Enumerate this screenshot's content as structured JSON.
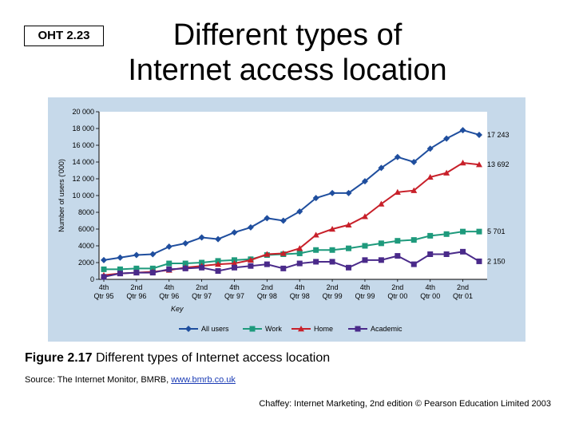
{
  "oht_label": "OHT 2.23",
  "title_line1": "Different types of",
  "title_line2": "Internet access location",
  "caption": {
    "fig_label": "Figure 2.17",
    "fig_text": "Different types of Internet access location"
  },
  "source": {
    "prefix": "Source: The Internet Monitor, BMRB, ",
    "link": "www.bmrb.co.uk"
  },
  "footer": "Chaffey: Internet Marketing, 2nd edition © Pearson Education Limited 2003",
  "chart_data": {
    "type": "line",
    "ylabel": "Number of users ('000)",
    "ylim": [
      0,
      20000
    ],
    "yticks": [
      "0",
      "2000",
      "4000",
      "6000",
      "8000",
      "10 000",
      "12 000",
      "14 000",
      "16 000",
      "18 000",
      "20 000"
    ],
    "xtick_labels": [
      [
        "4th",
        "Qtr 95"
      ],
      [
        "2nd",
        "Qtr 96"
      ],
      [
        "4th",
        "Qtr 96"
      ],
      [
        "2nd",
        "Qtr 97"
      ],
      [
        "4th",
        "Qtr 97"
      ],
      [
        "2nd",
        "Qtr 98"
      ],
      [
        "4th",
        "Qtr 98"
      ],
      [
        "2nd",
        "Qtr 99"
      ],
      [
        "4th",
        "Qtr 99"
      ],
      [
        "2nd",
        "Qtr 00"
      ],
      [
        "4th",
        "Qtr 00"
      ],
      [
        "2nd",
        "Qtr 01"
      ]
    ],
    "key_title": "Key",
    "grid": false,
    "series": [
      {
        "name": "All users",
        "color": "#1f4e9e",
        "marker": "diamond",
        "end_label": "17 243",
        "values": [
          2300,
          2600,
          2900,
          3000,
          3900,
          4300,
          5000,
          4800,
          5600,
          6200,
          7300,
          7000,
          8100,
          9700,
          10300,
          10300,
          11700,
          13300,
          14600,
          14000,
          15600,
          16800,
          17800,
          17243
        ]
      },
      {
        "name": "Work",
        "color": "#1e9a7c",
        "marker": "square",
        "end_label": "5 701",
        "values": [
          1200,
          1200,
          1300,
          1300,
          1900,
          1900,
          2000,
          2200,
          2300,
          2400,
          2900,
          3000,
          3100,
          3500,
          3500,
          3700,
          4000,
          4300,
          4600,
          4700,
          5200,
          5400,
          5700,
          5701
        ]
      },
      {
        "name": "Home",
        "color": "#c8202a",
        "marker": "triangle",
        "end_label": "13 692",
        "values": [
          500,
          700,
          800,
          900,
          1100,
          1400,
          1600,
          1800,
          1900,
          2300,
          3000,
          3100,
          3700,
          5300,
          6000,
          6500,
          7500,
          9000,
          10400,
          10600,
          12200,
          12700,
          13900,
          13692
        ]
      },
      {
        "name": "Academic",
        "color": "#4a2a8a",
        "marker": "square",
        "end_label": "2 150",
        "values": [
          300,
          700,
          800,
          800,
          1200,
          1300,
          1400,
          1000,
          1400,
          1600,
          1800,
          1300,
          1900,
          2100,
          2100,
          1400,
          2300,
          2300,
          2800,
          1800,
          3000,
          3000,
          3300,
          2150
        ]
      }
    ]
  }
}
